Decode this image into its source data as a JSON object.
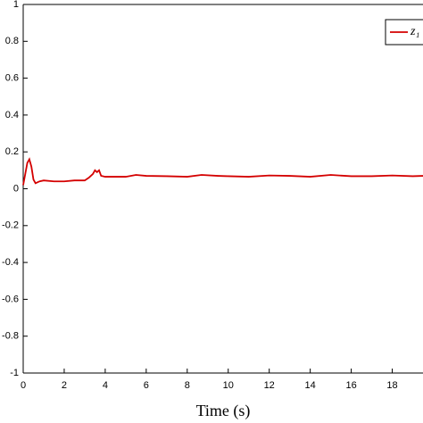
{
  "chart_data": {
    "type": "line",
    "x_label": "Time (s)",
    "xlim": [
      0,
      19.5
    ],
    "xticks": [
      0,
      2,
      4,
      6,
      8,
      10,
      12,
      14,
      16,
      18
    ],
    "ylim": [
      -1,
      1
    ],
    "yticks": [
      -1,
      -0.8,
      -0.6,
      -0.4,
      -0.2,
      0,
      0.2,
      0.4,
      0.6,
      0.8,
      1
    ],
    "legend": "upper right",
    "series": [
      {
        "name": "z₁",
        "color": "#d40000",
        "x": [
          0,
          0.1,
          0.2,
          0.3,
          0.4,
          0.5,
          0.6,
          0.8,
          1,
          1.5,
          2,
          2.5,
          3,
          3.2,
          3.4,
          3.5,
          3.6,
          3.7,
          3.8,
          4,
          5,
          5.5,
          6,
          7,
          8,
          8.7,
          9.5,
          10,
          11,
          12,
          13,
          14,
          15,
          16,
          17,
          18,
          19,
          19.5
        ],
        "values": [
          0.02,
          0.08,
          0.14,
          0.16,
          0.12,
          0.05,
          0.03,
          0.04,
          0.045,
          0.04,
          0.04,
          0.045,
          0.045,
          0.06,
          0.08,
          0.1,
          0.09,
          0.1,
          0.07,
          0.065,
          0.065,
          0.075,
          0.07,
          0.068,
          0.065,
          0.075,
          0.07,
          0.068,
          0.065,
          0.072,
          0.07,
          0.065,
          0.075,
          0.068,
          0.068,
          0.072,
          0.068,
          0.07
        ]
      }
    ]
  }
}
